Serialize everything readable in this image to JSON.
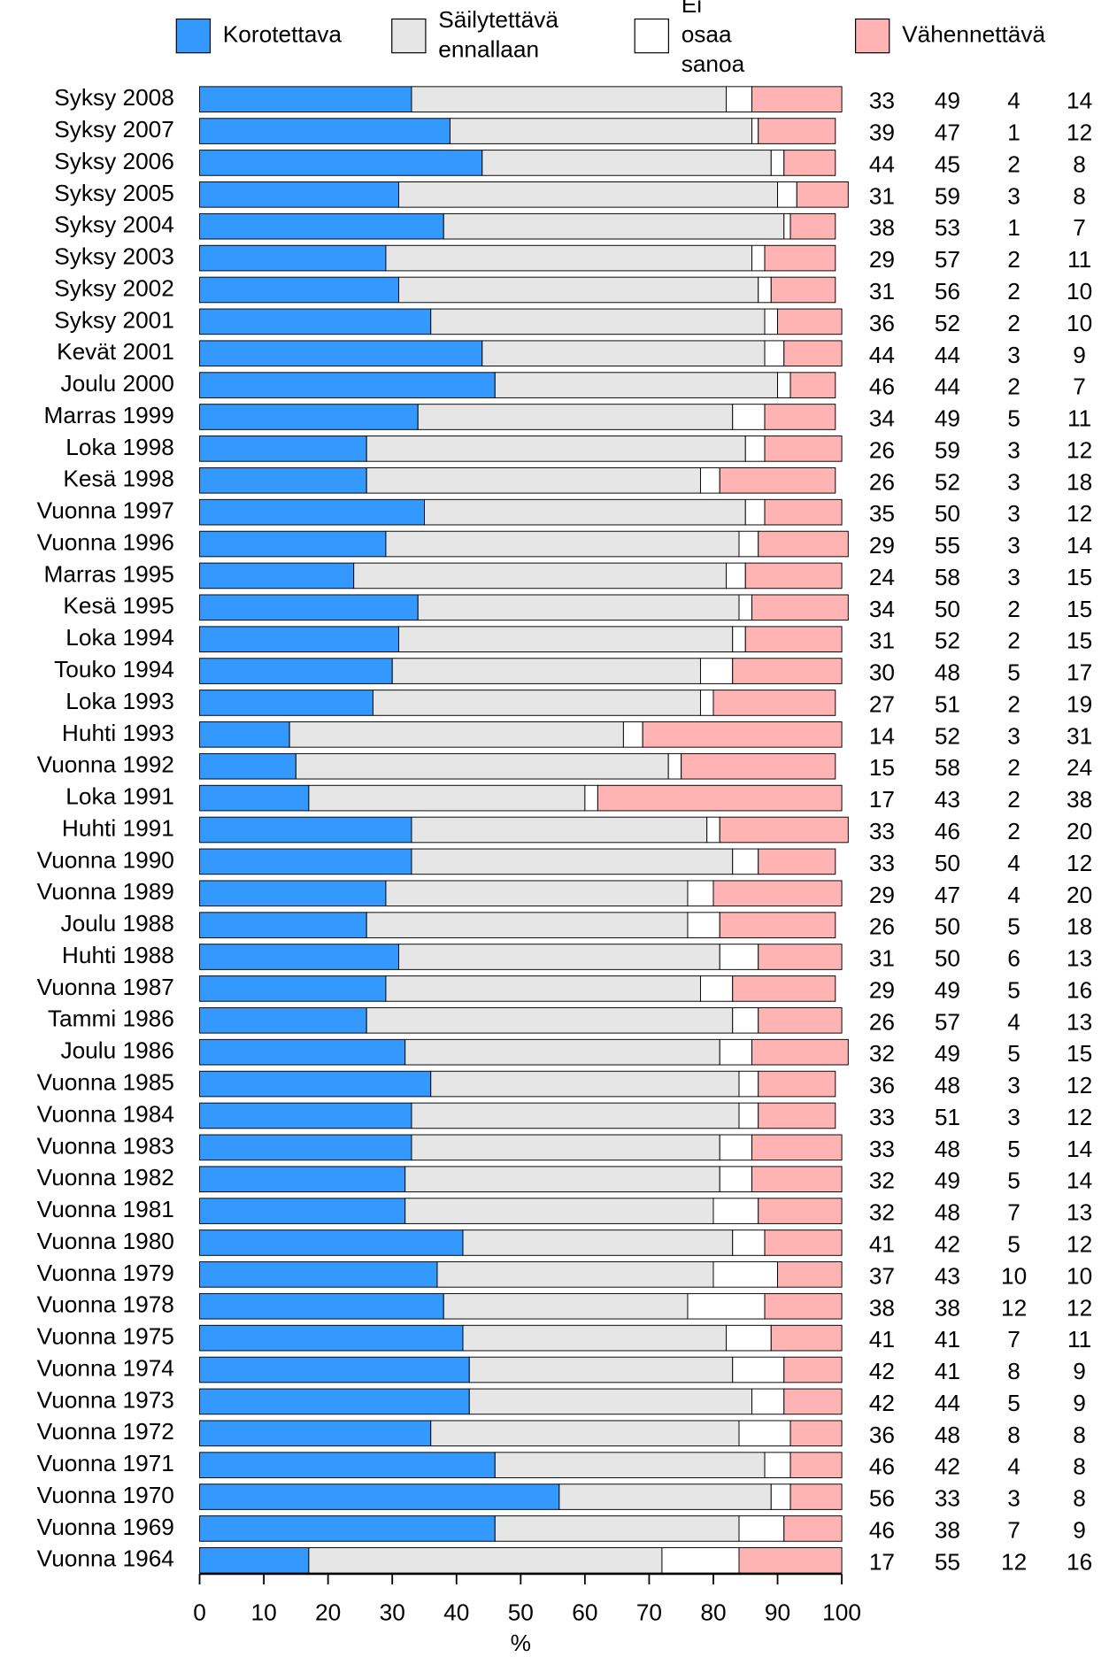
{
  "chart_data": {
    "type": "stacked-bar-horizontal",
    "categories": [
      "Syksy 2008",
      "Syksy 2007",
      "Syksy 2006",
      "Syksy 2005",
      "Syksy 2004",
      "Syksy 2003",
      "Syksy 2002",
      "Syksy 2001",
      "Kevät 2001",
      "Joulu 2000",
      "Marras 1999",
      "Loka 1998",
      "Kesä 1998",
      "Vuonna 1997",
      "Vuonna 1996",
      "Marras 1995",
      "Kesä 1995",
      "Loka 1994",
      "Touko 1994",
      "Loka 1993",
      "Huhti 1993",
      "Vuonna 1992",
      "Loka 1991",
      "Huhti 1991",
      "Vuonna 1990",
      "Vuonna 1989",
      "Joulu 1988",
      "Huhti 1988",
      "Vuonna 1987",
      "Tammi 1986",
      "Joulu 1986",
      "Vuonna 1985",
      "Vuonna 1984",
      "Vuonna 1983",
      "Vuonna 1982",
      "Vuonna 1981",
      "Vuonna 1980",
      "Vuonna 1979",
      "Vuonna 1978",
      "Vuonna 1975",
      "Vuonna 1974",
      "Vuonna 1973",
      "Vuonna 1972",
      "Vuonna 1971",
      "Vuonna 1970",
      "Vuonna 1969",
      "Vuonna 1964"
    ],
    "series": [
      {
        "name": "Korotettava",
        "color": "#3399ff",
        "values": [
          33,
          39,
          44,
          31,
          38,
          29,
          31,
          36,
          44,
          46,
          34,
          26,
          26,
          35,
          29,
          24,
          34,
          31,
          30,
          27,
          14,
          15,
          17,
          33,
          33,
          29,
          26,
          31,
          29,
          26,
          32,
          36,
          33,
          33,
          32,
          32,
          41,
          37,
          38,
          41,
          42,
          42,
          36,
          46,
          56,
          46,
          17
        ]
      },
      {
        "name": "Säilytettävä ennallaan",
        "color": "#e6e6e6",
        "values": [
          49,
          47,
          45,
          59,
          53,
          57,
          56,
          52,
          44,
          44,
          49,
          59,
          52,
          50,
          55,
          58,
          50,
          52,
          48,
          51,
          52,
          58,
          43,
          46,
          50,
          47,
          50,
          50,
          49,
          57,
          49,
          48,
          51,
          48,
          49,
          48,
          42,
          43,
          38,
          41,
          41,
          44,
          48,
          42,
          33,
          38,
          55
        ]
      },
      {
        "name": "Ei osaa sanoa",
        "color": "#ffffff",
        "values": [
          4,
          1,
          2,
          3,
          1,
          2,
          2,
          2,
          3,
          2,
          5,
          3,
          3,
          3,
          3,
          3,
          2,
          2,
          5,
          2,
          3,
          2,
          2,
          2,
          4,
          4,
          5,
          6,
          5,
          4,
          5,
          3,
          3,
          5,
          5,
          7,
          5,
          10,
          12,
          7,
          8,
          5,
          8,
          4,
          3,
          7,
          12
        ]
      },
      {
        "name": "Vähennettävä",
        "color": "#ffb3b3",
        "values": [
          14,
          12,
          8,
          8,
          7,
          11,
          10,
          10,
          9,
          7,
          11,
          12,
          18,
          12,
          14,
          15,
          15,
          15,
          17,
          19,
          31,
          24,
          38,
          20,
          12,
          20,
          18,
          13,
          16,
          13,
          15,
          12,
          12,
          14,
          14,
          13,
          12,
          10,
          12,
          11,
          9,
          9,
          8,
          8,
          8,
          9,
          16
        ]
      }
    ],
    "x_label": "%",
    "xlim": [
      0,
      100
    ],
    "xticks": [
      0,
      10,
      20,
      30,
      40,
      50,
      60,
      70,
      80,
      90,
      100
    ],
    "legend": "top"
  }
}
